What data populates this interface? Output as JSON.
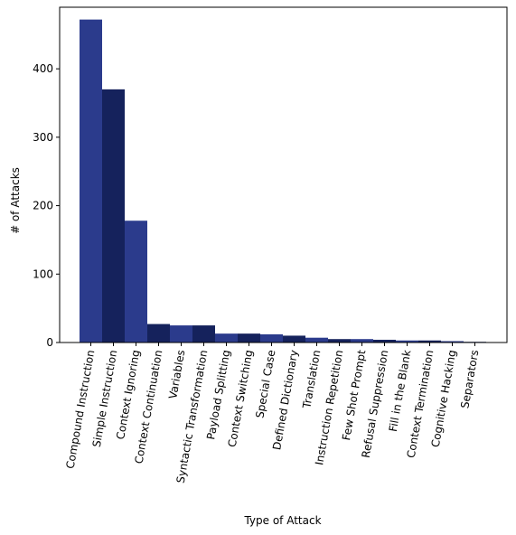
{
  "colors": {
    "bar_a": "#2b3b8c",
    "bar_b": "#15225c",
    "axis": "#000000",
    "background": "#ffffff"
  },
  "chart_data": {
    "type": "bar",
    "title": "",
    "xlabel": "Type of Attack",
    "ylabel": "# of Attacks",
    "ylim": [
      0,
      490
    ],
    "yticks": [
      0,
      100,
      200,
      300,
      400
    ],
    "grid": false,
    "legend": "none",
    "categories": [
      "Compound Instruction",
      "Simple Instruction",
      "Context Ignoring",
      "Context Continuation",
      "Variables",
      "Syntactic Transformation",
      "Payload Splitting",
      "Context Switching",
      "Special Case",
      "Defined Dictionary",
      "Translation",
      "Instruction Repetition",
      "Few Shot Prompt",
      "Refusal Suppression",
      "Fill in the Blank",
      "Context Termination",
      "Cognitive Hacking",
      "Separators"
    ],
    "values": [
      472,
      370,
      178,
      27,
      25,
      25,
      13,
      13,
      12,
      10,
      7,
      5,
      5,
      4,
      3,
      3,
      2,
      1
    ]
  }
}
